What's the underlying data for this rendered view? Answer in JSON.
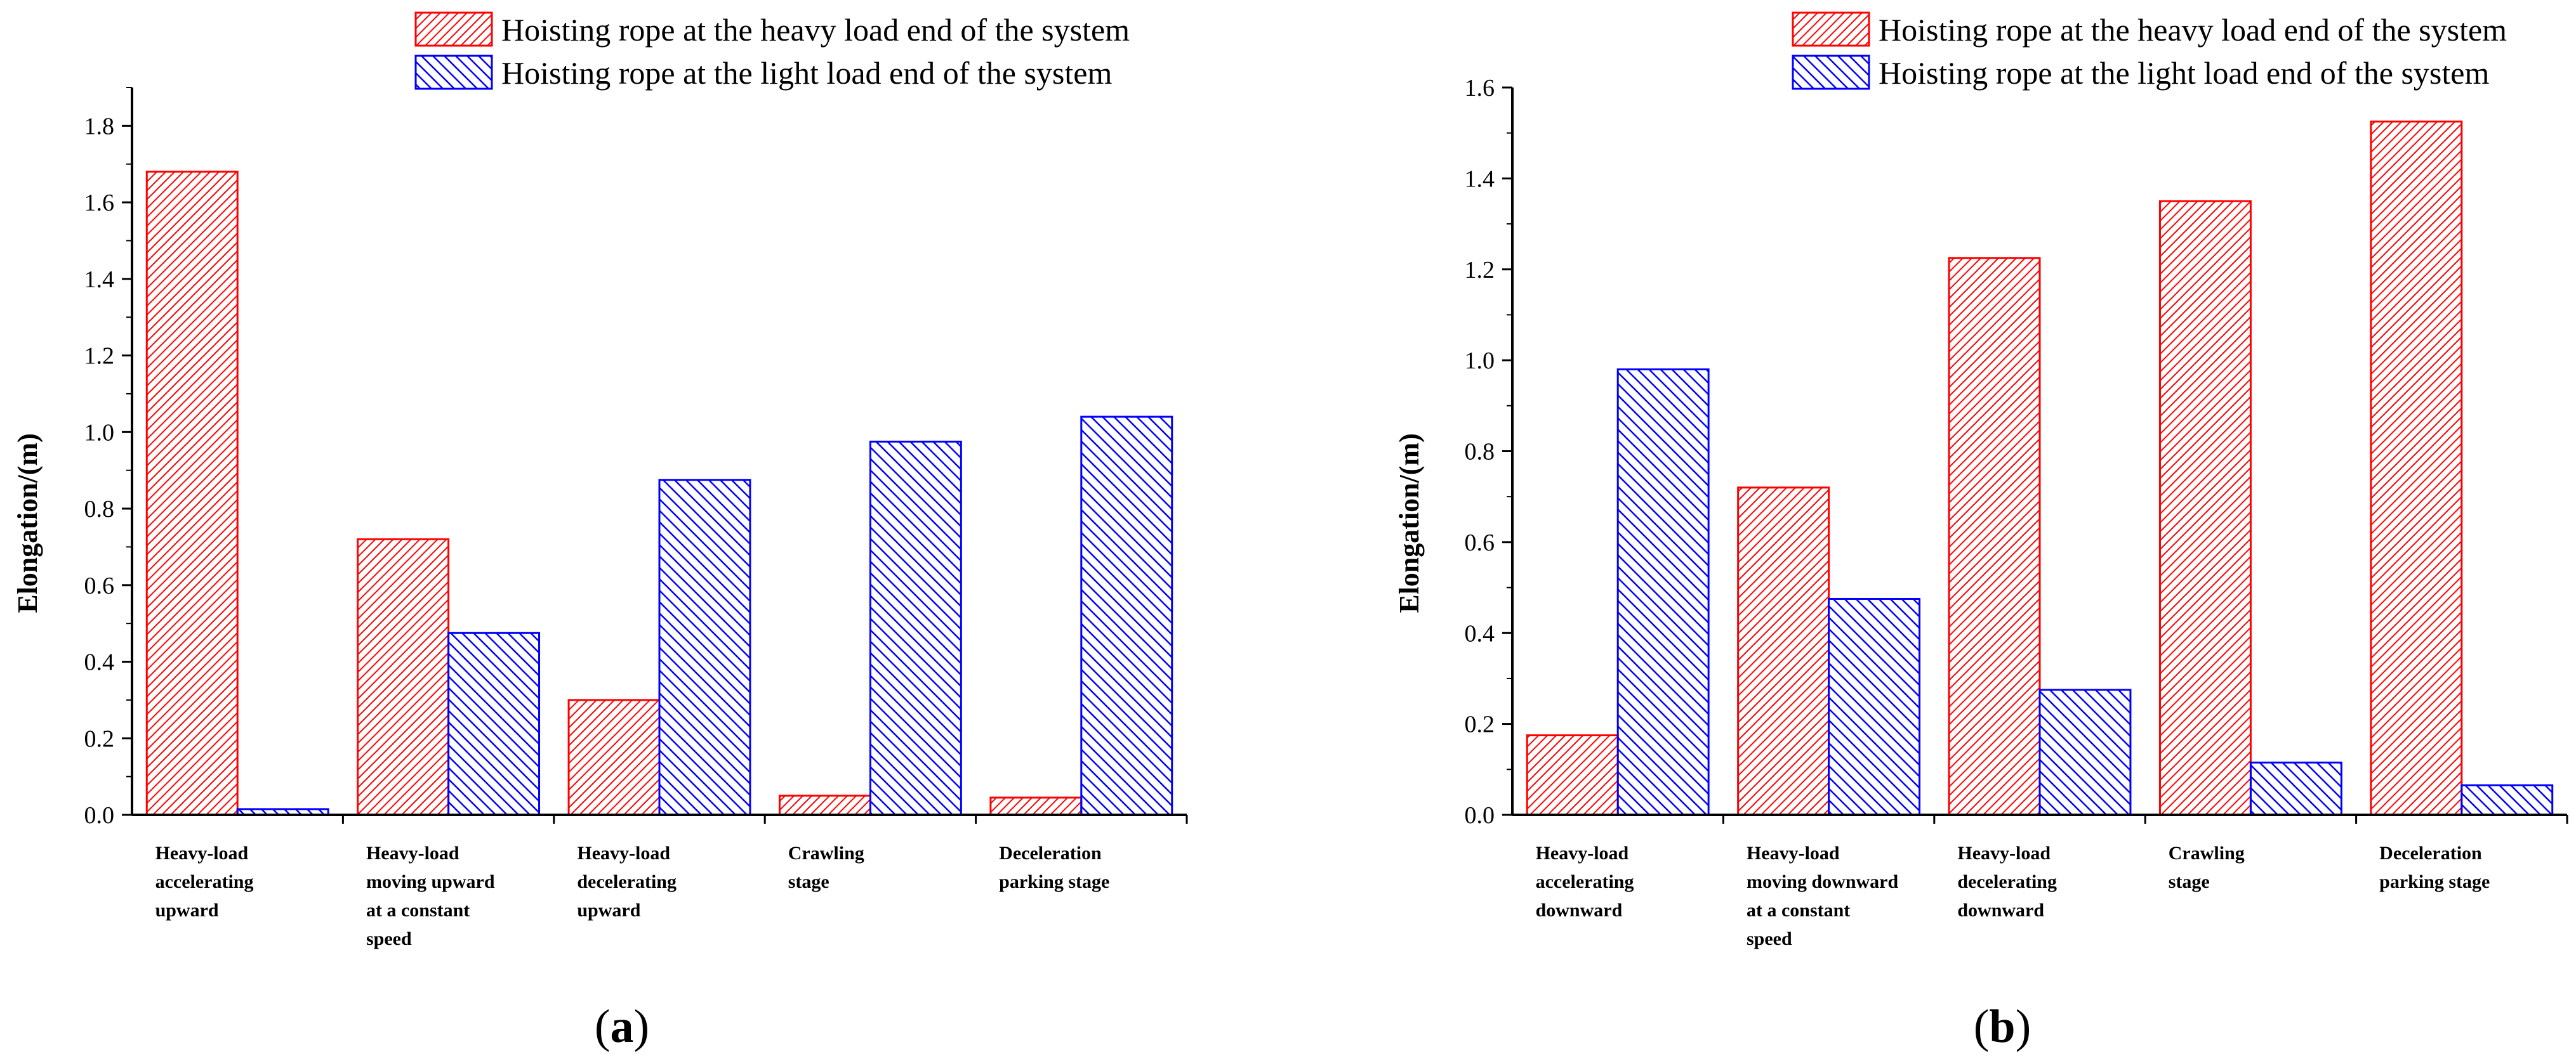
{
  "legend": {
    "heavy": "Hoisting rope at the heavy load end of the system",
    "light": "Hoisting rope at the light load end of the system"
  },
  "colors": {
    "heavy": "#ff0000",
    "light": "#0000ff",
    "axis": "#000000"
  },
  "chart_data": [
    {
      "id": "a",
      "type": "bar",
      "caption_open": "(",
      "caption_letter": "a",
      "caption_close": ")",
      "ylabel": "Elongation/(m)",
      "ylim": [
        0,
        1.9
      ],
      "yticks": [
        0.0,
        0.2,
        0.4,
        0.6,
        0.8,
        1.0,
        1.2,
        1.4,
        1.6,
        1.8
      ],
      "ytick_labels": [
        "0.0",
        "0.2",
        "0.4",
        "0.6",
        "0.8",
        "1.0",
        "1.2",
        "1.4",
        "1.6",
        "1.8"
      ],
      "categories": [
        [
          "Heavy-load",
          "accelerating",
          "upward"
        ],
        [
          "Heavy-load",
          "moving upward",
          "at a constant",
          "speed"
        ],
        [
          "Heavy-load",
          "decelerating",
          "upward"
        ],
        [
          "Crawling",
          "stage"
        ],
        [
          "Deceleration",
          "parking stage"
        ]
      ],
      "series": [
        {
          "name": "Hoisting rope at the heavy load end of the system",
          "key": "heavy",
          "values": [
            1.68,
            0.72,
            0.3,
            0.05,
            0.045
          ]
        },
        {
          "name": "Hoisting rope at the light load end of the system",
          "key": "light",
          "values": [
            0.015,
            0.475,
            0.875,
            0.975,
            1.04
          ]
        }
      ]
    },
    {
      "id": "b",
      "type": "bar",
      "caption_open": "(",
      "caption_letter": "b",
      "caption_close": ")",
      "ylabel": "Elongation/(m)",
      "ylim": [
        0,
        1.6
      ],
      "yticks": [
        0.0,
        0.2,
        0.4,
        0.6,
        0.8,
        1.0,
        1.2,
        1.4,
        1.6
      ],
      "ytick_labels": [
        "0.0",
        "0.2",
        "0.4",
        "0.6",
        "0.8",
        "1.0",
        "1.2",
        "1.4",
        "1.6"
      ],
      "categories": [
        [
          "Heavy-load",
          "accelerating",
          "downward"
        ],
        [
          "Heavy-load",
          "moving downward",
          "at a constant",
          "speed"
        ],
        [
          "Heavy-load",
          "decelerating",
          "downward"
        ],
        [
          "Crawling",
          "stage"
        ],
        [
          "Deceleration",
          "parking stage"
        ]
      ],
      "series": [
        {
          "name": "Hoisting rope at the heavy load end of the system",
          "key": "heavy",
          "values": [
            0.175,
            0.72,
            1.225,
            1.35,
            1.525
          ]
        },
        {
          "name": "Hoisting rope at the light load end of the system",
          "key": "light",
          "values": [
            0.98,
            0.475,
            0.275,
            0.115,
            0.065
          ]
        }
      ]
    }
  ]
}
